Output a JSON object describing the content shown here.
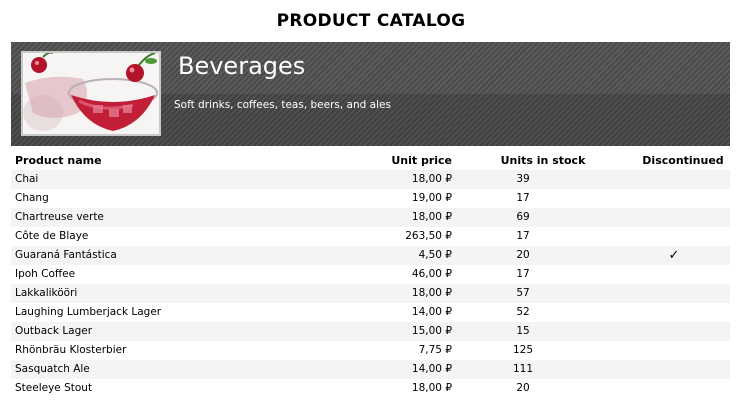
{
  "report": {
    "title": "PRODUCT CATALOG"
  },
  "category": {
    "name": "Beverages",
    "description": "Soft drinks, coffees, teas, beers, and ales"
  },
  "table": {
    "headers": [
      "Product name",
      "Unit price",
      "Units in stock",
      "Discontinued"
    ],
    "rows": [
      {
        "name": "Chai",
        "price": "18,00 ₽",
        "stock": "39",
        "discontinued": false
      },
      {
        "name": "Chang",
        "price": "19,00 ₽",
        "stock": "17",
        "discontinued": false
      },
      {
        "name": "Chartreuse verte",
        "price": "18,00 ₽",
        "stock": "69",
        "discontinued": false
      },
      {
        "name": "Côte de Blaye",
        "price": "263,50 ₽",
        "stock": "17",
        "discontinued": false
      },
      {
        "name": "Guaraná Fantástica",
        "price": "4,50 ₽",
        "stock": "20",
        "discontinued": true
      },
      {
        "name": "Ipoh Coffee",
        "price": "46,00 ₽",
        "stock": "17",
        "discontinued": false
      },
      {
        "name": "Lakkalikööri",
        "price": "18,00 ₽",
        "stock": "57",
        "discontinued": false
      },
      {
        "name": "Laughing Lumberjack Lager",
        "price": "14,00 ₽",
        "stock": "52",
        "discontinued": false
      },
      {
        "name": "Outback Lager",
        "price": "15,00 ₽",
        "stock": "15",
        "discontinued": false
      },
      {
        "name": "Rhönbräu Klosterbier",
        "price": "7,75 ₽",
        "stock": "125",
        "discontinued": false
      },
      {
        "name": "Sasquatch Ale",
        "price": "14,00 ₽",
        "stock": "111",
        "discontinued": false
      },
      {
        "name": "Steeleye Stout",
        "price": "18,00 ₽",
        "stock": "20",
        "discontinued": false
      }
    ]
  },
  "icons": {
    "check": "✓"
  }
}
